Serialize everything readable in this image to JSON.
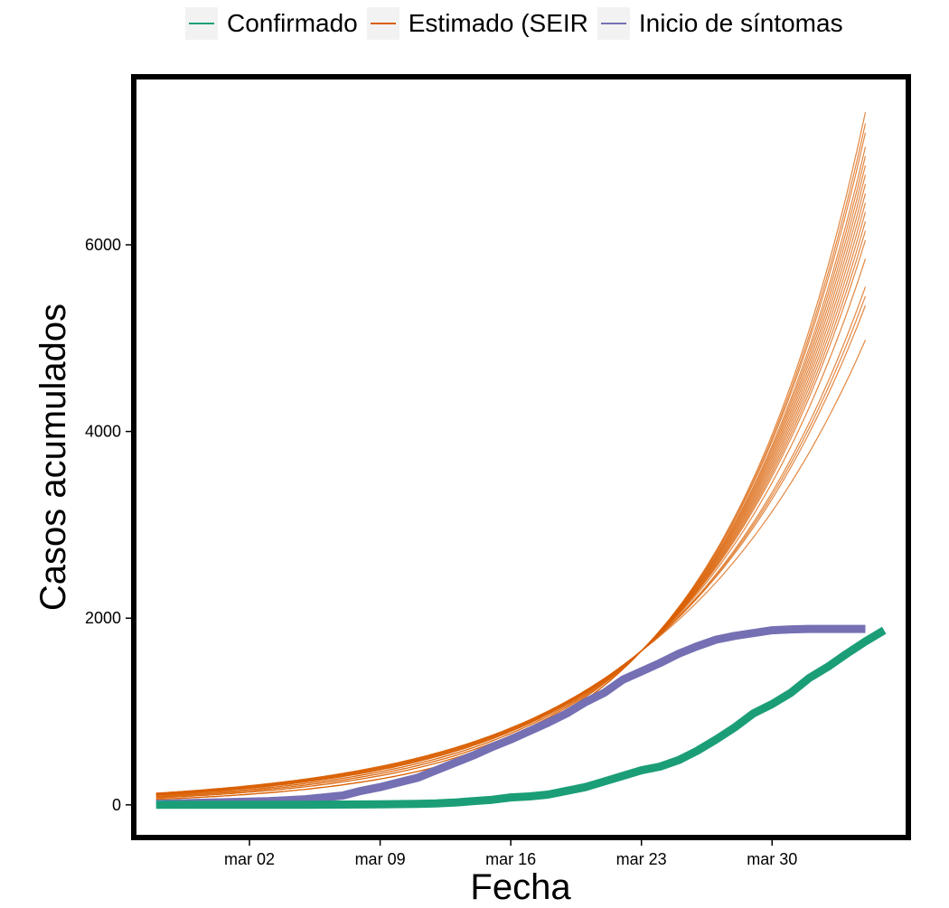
{
  "legend": [
    {
      "label": "Confirmado",
      "color": "#1b9e77"
    },
    {
      "label": "Estimado (SEIR",
      "color": "#d95f02"
    },
    {
      "label": "Inicio de síntomas",
      "color": "#7570b3"
    }
  ],
  "chart_data": {
    "type": "line",
    "xlabel": "Fecha",
    "ylabel": "Casos acumulados",
    "x_ticks": [
      "mar 02",
      "mar 09",
      "mar 16",
      "mar 23",
      "mar 30"
    ],
    "x_tick_days": [
      2,
      9,
      16,
      23,
      30
    ],
    "xlim_days": [
      -4.2,
      37.3
    ],
    "y_ticks": [
      0,
      2000,
      4000,
      6000
    ],
    "ylim": [
      -350,
      7800
    ],
    "legend_position": "top",
    "grid": false,
    "series": [
      {
        "name": "Confirmado",
        "color": "#1b9e77",
        "days": [
          -3,
          -2,
          -1,
          0,
          1,
          2,
          3,
          4,
          5,
          6,
          7,
          8,
          9,
          10,
          11,
          12,
          13,
          14,
          15,
          16,
          17,
          18,
          19,
          20,
          21,
          22,
          23,
          24,
          25,
          26,
          27,
          28,
          29,
          30,
          31,
          32,
          33,
          34,
          35,
          36
        ],
        "values": [
          0,
          0,
          0,
          0,
          0,
          0,
          0,
          0,
          1,
          2,
          3,
          4,
          6,
          8,
          10,
          15,
          25,
          40,
          55,
          80,
          90,
          110,
          150,
          190,
          250,
          310,
          370,
          410,
          480,
          580,
          700,
          830,
          980,
          1080,
          1200,
          1360,
          1480,
          1620,
          1750,
          1870
        ]
      },
      {
        "name": "Inicio de síntomas",
        "color": "#7570b3",
        "days": [
          -3,
          -2,
          -1,
          0,
          1,
          2,
          3,
          4,
          5,
          6,
          7,
          8,
          9,
          10,
          11,
          12,
          13,
          14,
          15,
          16,
          17,
          18,
          19,
          20,
          21,
          22,
          23,
          24,
          25,
          26,
          27,
          28,
          29,
          30,
          31,
          32,
          33,
          34,
          35
        ],
        "values": [
          10,
          15,
          20,
          25,
          30,
          35,
          40,
          50,
          60,
          80,
          100,
          150,
          190,
          240,
          290,
          370,
          450,
          530,
          620,
          700,
          790,
          880,
          980,
          1100,
          1200,
          1340,
          1430,
          1520,
          1620,
          1700,
          1770,
          1810,
          1840,
          1870,
          1880,
          1885,
          1885,
          1885,
          1885
        ]
      }
    ],
    "estimated_ensemble": {
      "name": "Estimado (SEIR",
      "color": "#d95f02",
      "day_start": -3,
      "day_end": 35,
      "value_at_day_23": 1650,
      "start_values": [
        60,
        75,
        85,
        95,
        105,
        110,
        115,
        120,
        125
      ],
      "end_values": [
        4980,
        5350,
        5450,
        5550,
        5850,
        6050,
        6150,
        6250,
        6350,
        6450,
        6550,
        6650,
        6750,
        6850,
        6950,
        7050,
        7200,
        7300,
        7420
      ]
    }
  }
}
